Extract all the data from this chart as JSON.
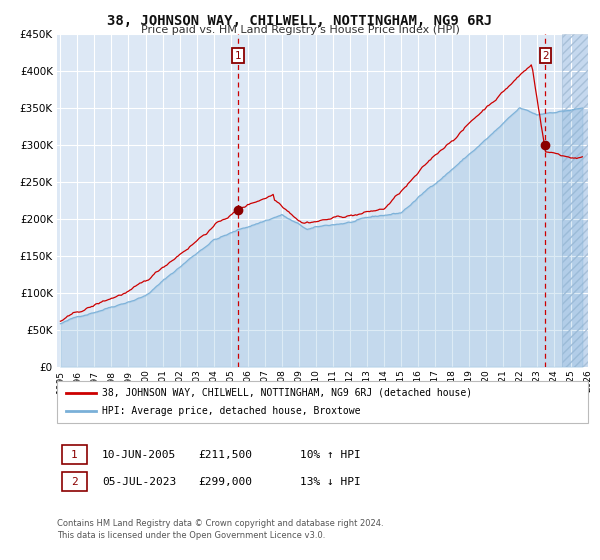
{
  "title": "38, JOHNSON WAY, CHILWELL, NOTTINGHAM, NG9 6RJ",
  "subtitle": "Price paid vs. HM Land Registry's House Price Index (HPI)",
  "legend_line1": "38, JOHNSON WAY, CHILWELL, NOTTINGHAM, NG9 6RJ (detached house)",
  "legend_line2": "HPI: Average price, detached house, Broxtowe",
  "annotation1_label": "1",
  "annotation1_date": "10-JUN-2005",
  "annotation1_price": "£211,500",
  "annotation1_hpi": "10% ↑ HPI",
  "annotation2_label": "2",
  "annotation2_date": "05-JUL-2023",
  "annotation2_price": "£299,000",
  "annotation2_hpi": "13% ↓ HPI",
  "footnote1": "Contains HM Land Registry data © Crown copyright and database right 2024.",
  "footnote2": "This data is licensed under the Open Government Licence v3.0.",
  "sale1_year": 2005.44,
  "sale1_value": 211500,
  "sale2_year": 2023.5,
  "sale2_value": 299000,
  "ylim": [
    0,
    450000
  ],
  "xlim_start": 1995,
  "xlim_end": 2026,
  "bg_color": "#dde8f5",
  "line_red": "#cc0000",
  "line_blue": "#7ab0d8",
  "grid_color": "#ffffff",
  "future_shade_start": 2024.5,
  "fig_bg": "#ffffff"
}
